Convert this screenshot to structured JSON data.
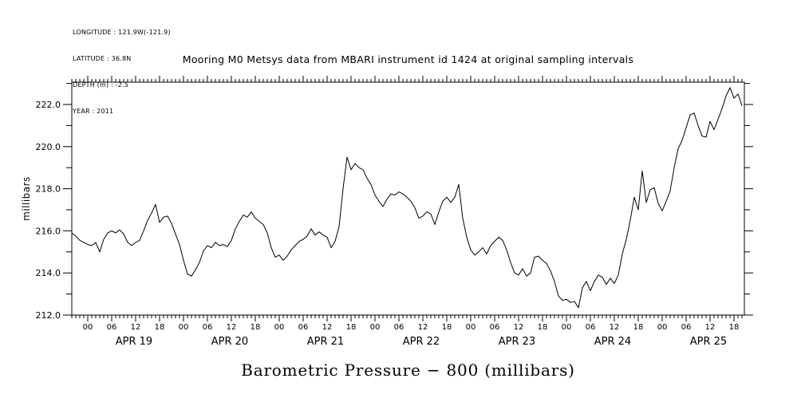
{
  "meta": {
    "longitude_line": "LONGITUDE : 121.9W(-121.9)",
    "latitude_line": "LATITUDE : 36.8N",
    "depth_line": "DEPTH (m) : -2.5",
    "year_line": "YEAR : 2011"
  },
  "title": "Mooring M0 Metsys data from MBARI instrument id 1424 at original sampling intervals",
  "bottom_title": "Barometric Pressure − 800 (millibars)",
  "y_axis": {
    "label": "millibars",
    "tick_labels": [
      "212.0",
      "214.0",
      "216.0",
      "218.0",
      "220.0",
      "222.0"
    ],
    "min": 212,
    "max": 223.1,
    "major_step": 2,
    "minor_step": 1
  },
  "x_axis": {
    "hour_labels": [
      "00",
      "06",
      "12",
      "18"
    ],
    "day_labels": [
      "APR 19",
      "APR 20",
      "APR 21",
      "APR 22",
      "APR 23",
      "APR 24",
      "APR 25"
    ],
    "minor_step_hours": 1,
    "major_step_hours": 6
  },
  "colors": {
    "background": "#ffffff",
    "foreground": "#000000"
  },
  "chart_data": {
    "type": "line",
    "title": "Mooring M0 Metsys data from MBARI instrument id 1424 at original sampling intervals",
    "xlabel": "Barometric Pressure - 800 (millibars), time axis APR 19 - APR 25 2011",
    "ylabel": "millibars",
    "ylim": [
      212,
      223.1
    ],
    "xlim_hours": [
      -4,
      164.6
    ],
    "grid": false,
    "legend": "none",
    "x_unit": "hours since 2011-04-19 00:00",
    "x_hours_start": -4,
    "x_hours_step": 1,
    "values": [
      215.9,
      215.75,
      215.55,
      215.45,
      215.35,
      215.3,
      215.45,
      215.0,
      215.6,
      215.9,
      216.0,
      215.9,
      216.05,
      215.85,
      215.45,
      215.3,
      215.45,
      215.55,
      216.0,
      216.5,
      216.85,
      217.25,
      216.4,
      216.65,
      216.7,
      216.35,
      215.85,
      215.35,
      214.6,
      213.95,
      213.85,
      214.15,
      214.5,
      215.05,
      215.3,
      215.2,
      215.45,
      215.3,
      215.35,
      215.25,
      215.55,
      216.1,
      216.45,
      216.75,
      216.65,
      216.9,
      216.6,
      216.45,
      216.3,
      215.9,
      215.2,
      214.75,
      214.85,
      214.6,
      214.8,
      215.1,
      215.3,
      215.5,
      215.6,
      215.75,
      216.1,
      215.8,
      215.95,
      215.8,
      215.7,
      215.2,
      215.5,
      216.2,
      218.0,
      219.5,
      218.9,
      219.2,
      219.0,
      218.9,
      218.5,
      218.2,
      217.7,
      217.4,
      217.15,
      217.5,
      217.75,
      217.7,
      217.85,
      217.75,
      217.6,
      217.4,
      217.1,
      216.6,
      216.7,
      216.9,
      216.8,
      216.3,
      216.9,
      217.4,
      217.6,
      217.35,
      217.6,
      218.2,
      216.6,
      215.7,
      215.1,
      214.85,
      215.0,
      215.2,
      214.9,
      215.3,
      215.5,
      215.7,
      215.55,
      215.1,
      214.5,
      214.0,
      213.9,
      214.2,
      213.85,
      214.0,
      214.75,
      214.8,
      214.6,
      214.45,
      214.1,
      213.6,
      212.9,
      212.7,
      212.75,
      212.6,
      212.65,
      212.35,
      213.3,
      213.6,
      213.15,
      213.6,
      213.9,
      213.8,
      213.45,
      213.75,
      213.5,
      213.9,
      214.9,
      215.6,
      216.5,
      217.6,
      217.0,
      218.85,
      217.35,
      217.95,
      218.05,
      217.3,
      216.95,
      217.4,
      217.9,
      219.0,
      219.9,
      220.3,
      220.9,
      221.5,
      221.6,
      221.0,
      220.5,
      220.45,
      221.2,
      220.8,
      221.3,
      221.8,
      222.4,
      222.8,
      222.3,
      222.5,
      221.95
    ]
  }
}
